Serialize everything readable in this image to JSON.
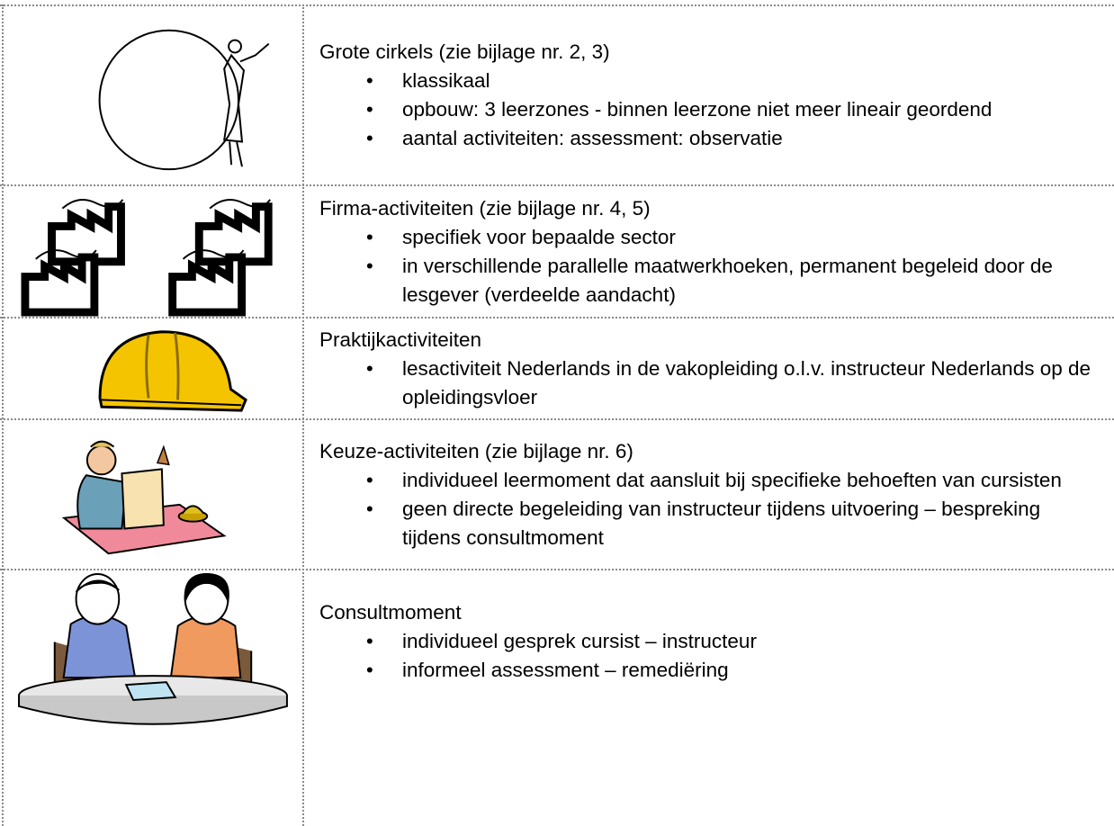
{
  "rows": [
    {
      "title": "Grote cirkels (zie bijlage nr. 2, 3)",
      "bullets": [
        "klassikaal",
        "opbouw: 3 leerzones - binnen leerzone niet meer lineair geordend",
        "aantal activiteiten: assessment: observatie"
      ]
    },
    {
      "title": "Firma-activiteiten (zie bijlage nr. 4, 5)",
      "bullets": [
        "specifiek voor bepaalde sector",
        "in verschillende parallelle maatwerkhoeken, permanent begeleid door de lesgever (verdeelde aandacht)"
      ]
    },
    {
      "title": "Praktijkactiviteiten",
      "bullets": [
        "lesactiviteit Nederlands in de vakopleiding o.l.v. instructeur Nederlands op de opleidingsvloer"
      ]
    },
    {
      "title": "Keuze-activiteiten (zie bijlage nr. 6)",
      "bullets": [
        "individueel leermoment dat aansluit bij specifieke behoeften van cursisten",
        "geen directe begeleiding van instructeur tijdens uitvoering – bespreking tijdens consultmoment"
      ]
    },
    {
      "title": "Consultmoment",
      "bullets": [
        "individueel gesprek cursist – instructeur",
        "informeel assessment – remediëring"
      ]
    }
  ]
}
